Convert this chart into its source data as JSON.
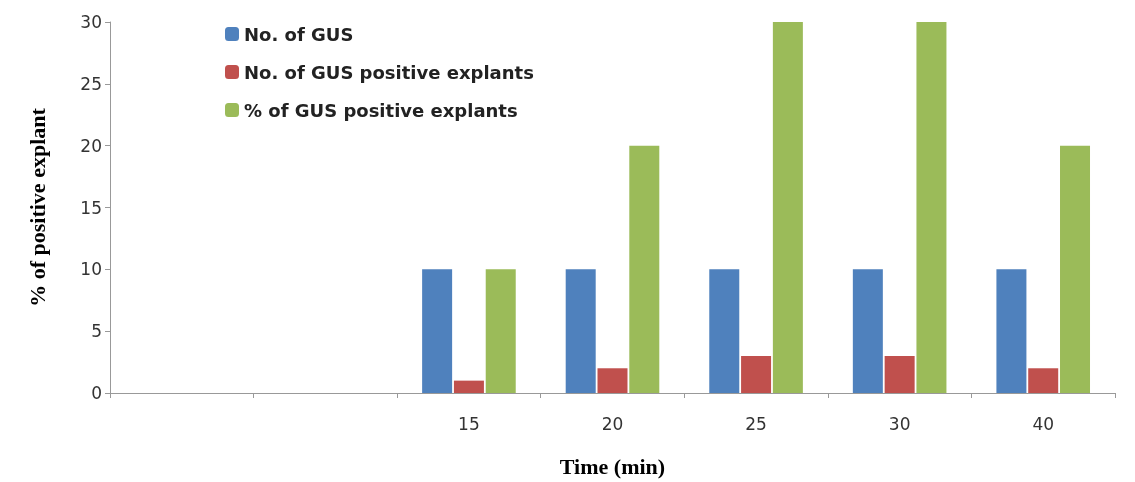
{
  "chart_data": {
    "type": "bar",
    "xlabel": "Time (min)",
    "ylabel": "% of positive explant",
    "categories": [
      null,
      null,
      "15",
      "20",
      "25",
      "30",
      "40"
    ],
    "series": [
      {
        "name": "No. of GUS",
        "color": "#4f81bd",
        "values": [
          0,
          0,
          10,
          10,
          10,
          10,
          10
        ]
      },
      {
        "name": "No. of GUS positive explants",
        "color": "#c0504d",
        "values": [
          null,
          null,
          1,
          2,
          3,
          3,
          2
        ]
      },
      {
        "name": "% of GUS positive explants",
        "color": "#9bbb59",
        "values": [
          null,
          null,
          10,
          20,
          30,
          30,
          20
        ]
      }
    ],
    "ylim": [
      0,
      30
    ],
    "yticks": [
      0,
      5,
      10,
      15,
      20,
      25,
      30
    ],
    "grid": false,
    "legend": "top left"
  }
}
